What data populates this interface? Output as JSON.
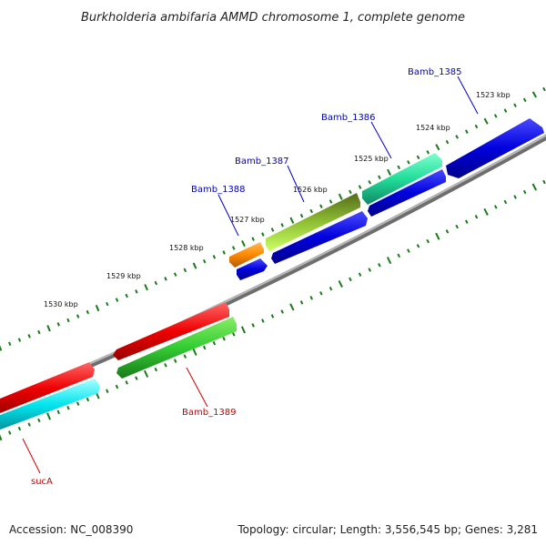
{
  "title": "Burkholderia ambifaria AMMD chromosome 1, complete genome",
  "footer": {
    "accession": "Accession: NC_008390",
    "topology": "Topology: circular; Length: 3,556,545 bp; Genes: 3,281"
  },
  "colors": {
    "backbone": "#8c8c8c",
    "tick": "#1a7a1a",
    "label_blue": "#0000cc",
    "label_red": "#cc0000"
  },
  "ticks": [
    "1523 kbp",
    "1524 kbp",
    "1525 kbp",
    "1526 kbp",
    "1527 kbp",
    "1528 kbp",
    "1529 kbp",
    "1530 kbp"
  ],
  "genes": [
    {
      "name": "Bamb_1385",
      "color": "#0000dd",
      "label_color": "#0000cc"
    },
    {
      "name": "Bamb_1386",
      "color": "#22dd99",
      "label_color": "#0000cc"
    },
    {
      "name": "Bamb_1387",
      "color": "#99dd33",
      "label_color": "#0000cc"
    },
    {
      "name": "Bamb_1388",
      "color": "#ff8800",
      "label_color": "#0000cc"
    },
    {
      "name": "Bamb_1389",
      "color": "#33cc33",
      "label_color": "#cc0000"
    },
    {
      "name": "sucA",
      "color": "#00e5ee",
      "label_color": "#cc0000"
    }
  ]
}
